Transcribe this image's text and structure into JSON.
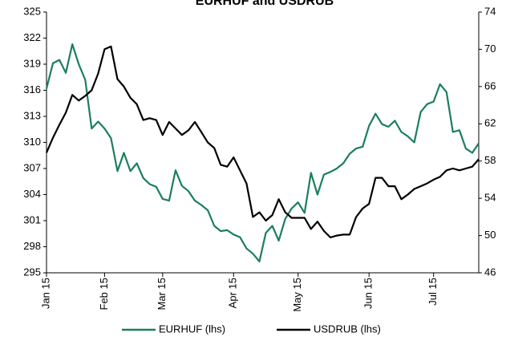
{
  "chart_data": {
    "type": "line",
    "title": "EURHUF and USDRUB",
    "categories": [
      "Jan 15",
      null,
      null,
      null,
      null,
      null,
      null,
      null,
      null,
      "Feb 15",
      null,
      null,
      null,
      null,
      null,
      null,
      null,
      null,
      "Mar 15",
      null,
      null,
      null,
      null,
      null,
      null,
      null,
      null,
      null,
      null,
      "Apr 15",
      null,
      null,
      null,
      null,
      null,
      null,
      null,
      null,
      null,
      "May 15",
      null,
      null,
      null,
      null,
      null,
      null,
      null,
      null,
      null,
      null,
      "Jun 15",
      null,
      null,
      null,
      null,
      null,
      null,
      null,
      null,
      null,
      "Jul 15",
      null,
      null,
      null,
      null,
      null,
      null,
      null
    ],
    "series": [
      {
        "name": "EURHUF (lhs)",
        "color": "#1b7f5b",
        "values": [
          316.2,
          319.1,
          319.5,
          318.0,
          321.3,
          319.0,
          317.2,
          311.6,
          312.4,
          311.6,
          310.5,
          306.7,
          308.8,
          306.7,
          307.6,
          305.9,
          305.2,
          304.9,
          303.5,
          303.3,
          306.8,
          305.0,
          304.4,
          303.3,
          302.8,
          302.2,
          300.4,
          299.8,
          299.9,
          299.4,
          299.1,
          297.8,
          297.2,
          296.3,
          299.6,
          300.4,
          298.7,
          301.2,
          302.4,
          303.1,
          301.9,
          306.5,
          304.0,
          306.3,
          306.6,
          307.0,
          307.6,
          308.7,
          309.3,
          309.5,
          311.9,
          313.3,
          312.1,
          311.8,
          312.5,
          311.2,
          310.7,
          310.0,
          313.5,
          314.4,
          314.7,
          316.7,
          315.8,
          311.2,
          311.4,
          309.3,
          308.8,
          309.9
        ]
      },
      {
        "name": "USDRUB (lhs)",
        "color": "#000000",
        "axis": "y2",
        "values": [
          58.9,
          60.5,
          61.9,
          63.2,
          65.1,
          64.5,
          65.0,
          65.6,
          67.4,
          70.0,
          70.3,
          66.8,
          66.0,
          64.8,
          64.1,
          62.4,
          62.6,
          62.4,
          60.8,
          62.2,
          61.5,
          60.8,
          61.3,
          62.2,
          61.1,
          60.0,
          59.4,
          57.6,
          57.4,
          58.4,
          57.0,
          55.6,
          52.0,
          52.5,
          51.6,
          52.2,
          53.9,
          52.5,
          51.9,
          51.9,
          51.9,
          50.7,
          51.5,
          50.5,
          49.8,
          50.0,
          50.1,
          50.1,
          52.0,
          52.9,
          53.4,
          56.2,
          56.2,
          55.3,
          55.3,
          53.9,
          54.4,
          55.0,
          55.3,
          55.6,
          56.0,
          56.3,
          57.0,
          57.2,
          57.0,
          57.2,
          57.4,
          58.2
        ]
      }
    ],
    "ylim": [
      295,
      325
    ],
    "yticks": [
      295,
      298,
      301,
      304,
      307,
      310,
      313,
      316,
      319,
      322,
      325
    ],
    "y2lim": [
      46,
      74
    ],
    "y2ticks": [
      46,
      50,
      54,
      58,
      62,
      66,
      70,
      74
    ]
  }
}
